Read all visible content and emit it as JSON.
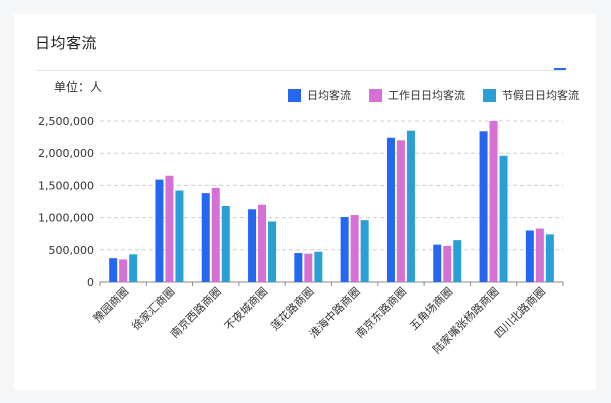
{
  "page": {
    "title": "日均客流",
    "unit_label": "单位：人"
  },
  "colors": {
    "accent": "#1f6feb",
    "series": [
      "#2468f2",
      "#d670d6",
      "#2a9fd6"
    ],
    "grid": "#cfcfcf",
    "axis": "#888888"
  },
  "chart_data": {
    "type": "bar",
    "title": "日均客流",
    "unit": "单位：人",
    "categories": [
      "豫园商圈",
      "徐家汇商圈",
      "南京西路商圈",
      "不夜城商圈",
      "莲花路商圈",
      "淮海中路商圈",
      "南京东路商圈",
      "五角场商圈",
      "陆家嘴张杨路商圈",
      "四川北路商圈"
    ],
    "series": [
      {
        "name": "日均客流",
        "values": [
          370000,
          1590000,
          1380000,
          1130000,
          450000,
          1010000,
          2240000,
          580000,
          2340000,
          800000
        ]
      },
      {
        "name": "工作日日均客流",
        "values": [
          350000,
          1650000,
          1460000,
          1200000,
          440000,
          1040000,
          2200000,
          560000,
          2500000,
          830000
        ]
      },
      {
        "name": "节假日日均客流",
        "values": [
          430000,
          1420000,
          1180000,
          940000,
          470000,
          960000,
          2350000,
          650000,
          1960000,
          740000
        ]
      }
    ],
    "y_ticks": [
      "0",
      "500,000",
      "1,000,000",
      "1,500,000",
      "2,000,000",
      "2,500,000"
    ],
    "ylim": [
      0,
      2500000
    ],
    "grid": true,
    "legend_position": "top-right"
  }
}
